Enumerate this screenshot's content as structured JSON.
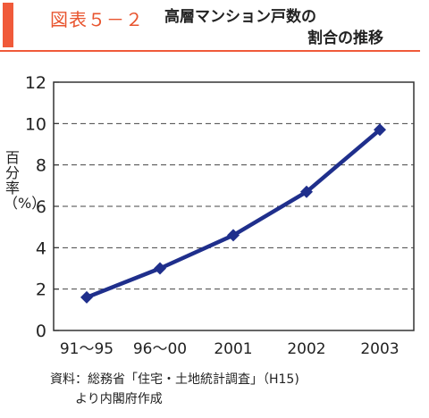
{
  "header": {
    "figure_label": "図表５－２",
    "title_line1": "高層マンション戸数の",
    "title_line2": "割合の推移"
  },
  "footer": {
    "source_line1": "資料：総務省「住宅・土地統計調査」（H15)",
    "source_line2": "より内閣府作成"
  },
  "colors": {
    "accent": "#f05a3a",
    "series": "#1f2f8c",
    "marker": "#1f2f8c"
  },
  "chart_data": {
    "type": "line",
    "title": "高層マンション戸数の割合の推移",
    "xlabel": "",
    "ylabel": "百分率（%）",
    "categories": [
      "91〜95",
      "96〜00",
      "2001",
      "2002",
      "2003"
    ],
    "series": [
      {
        "values": [
          1.6,
          3.0,
          4.6,
          6.7,
          9.7
        ]
      }
    ],
    "ylim": [
      0,
      12
    ],
    "yticks": [
      0,
      2,
      4,
      6,
      8,
      10,
      12
    ],
    "grid": "horizontal-dashed",
    "marker": "diamond"
  }
}
